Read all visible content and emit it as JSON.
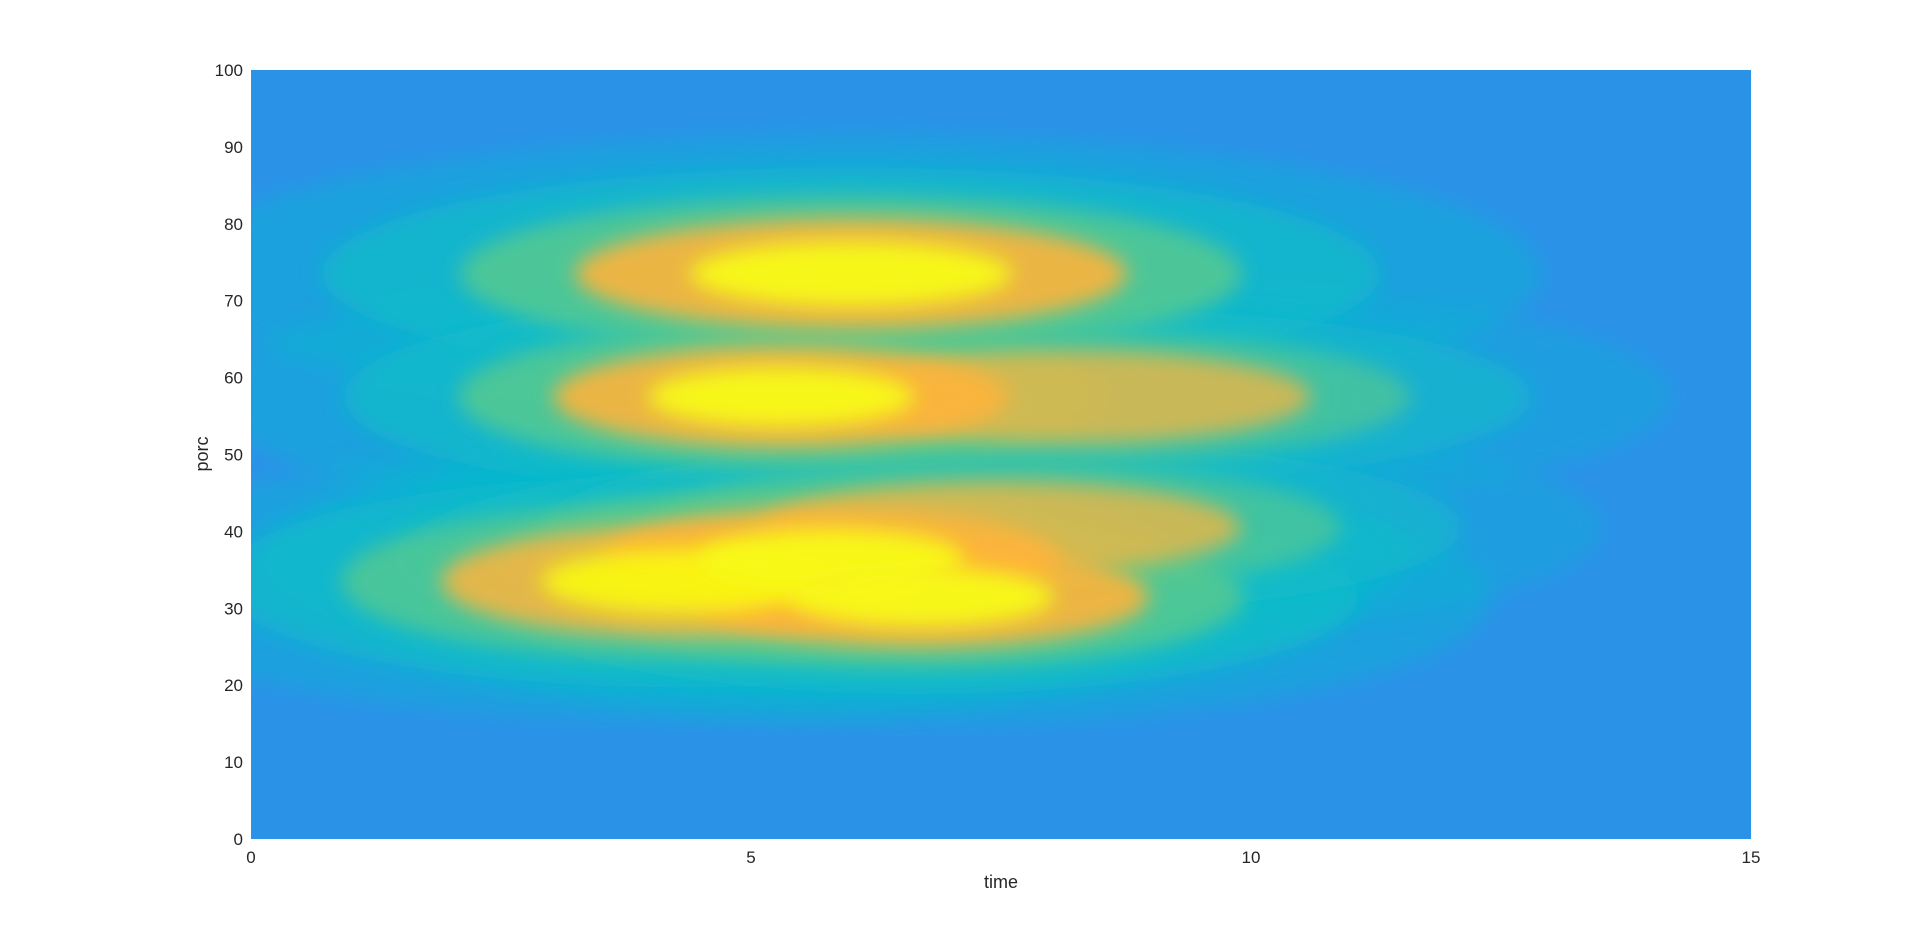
{
  "chart_data": {
    "type": "heatmap",
    "xlabel": "time",
    "ylabel": "porc",
    "xlim": [
      0,
      15
    ],
    "ylim": [
      0,
      100
    ],
    "xticks": [
      "0",
      "5",
      "10",
      "15"
    ],
    "yticks": [
      "0",
      "10",
      "20",
      "30",
      "40",
      "50",
      "60",
      "70",
      "80",
      "90",
      "100"
    ],
    "colormap": "parula",
    "grid": false,
    "legend": "none",
    "colors": {
      "background_low": "#2a93e8",
      "mid_cyan": "#0bbcc8",
      "mid_green": "#55c98f",
      "high_orange": "#fdb43c",
      "peak_yellow": "#f8fa13"
    },
    "hotspots": [
      {
        "time": 6.0,
        "porc": 73.5,
        "time_spread": 2.3,
        "porc_spread": 6.0,
        "intensity": 1.0
      },
      {
        "time": 5.3,
        "porc": 57.5,
        "time_spread": 1.9,
        "porc_spread": 5.5,
        "intensity": 1.0
      },
      {
        "time": 8.2,
        "porc": 57.5,
        "time_spread": 2.0,
        "porc_spread": 5.0,
        "intensity": 0.8
      },
      {
        "time": 4.3,
        "porc": 33.5,
        "time_spread": 2.0,
        "porc_spread": 6.0,
        "intensity": 0.95
      },
      {
        "time": 5.8,
        "porc": 36.5,
        "time_spread": 1.9,
        "porc_spread": 5.5,
        "intensity": 1.0
      },
      {
        "time": 6.7,
        "porc": 31.5,
        "time_spread": 1.9,
        "porc_spread": 5.5,
        "intensity": 1.0
      },
      {
        "time": 7.5,
        "porc": 40.5,
        "time_spread": 2.0,
        "porc_spread": 5.0,
        "intensity": 0.8
      }
    ]
  }
}
